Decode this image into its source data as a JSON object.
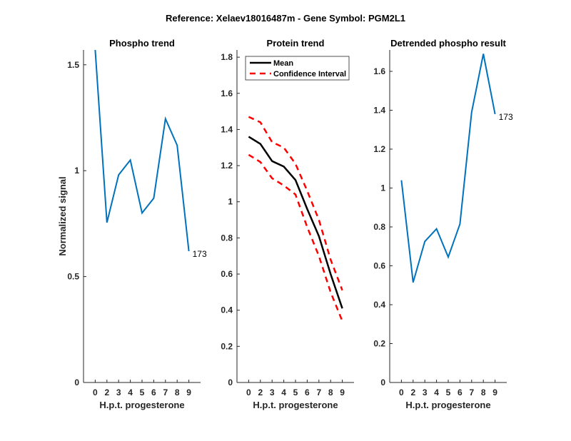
{
  "figure_title": "Reference:  Xelaev18016487m - Gene Symbol:  PGM2L1",
  "colors": {
    "phospho": "#0072BD",
    "mean": "#000000",
    "ci": "#FF0000",
    "axis": "#262626"
  },
  "chart_data": [
    {
      "type": "line",
      "title": "Phospho trend",
      "xlabel": "H.p.t. progesterone",
      "ylabel": "Normalized signal",
      "categories": [
        "0",
        "2",
        "3",
        "4",
        "5",
        "6",
        "7",
        "8",
        "9"
      ],
      "ylim": [
        0,
        1.57
      ],
      "yticks": [
        0,
        0.5,
        1,
        1.5
      ],
      "ytick_labels": [
        "0",
        "0.5",
        "1",
        "1.5"
      ],
      "series": [
        {
          "name": "phospho",
          "values": [
            1.57,
            0.755,
            0.98,
            1.05,
            0.8,
            0.87,
            1.245,
            1.12,
            0.62
          ]
        }
      ],
      "annotation": "173",
      "grid": false
    },
    {
      "type": "line",
      "title": "Protein trend",
      "xlabel": "H.p.t. progesterone",
      "categories": [
        "0",
        "2",
        "3",
        "4",
        "5",
        "6",
        "7",
        "8",
        "9"
      ],
      "ylim": [
        0,
        1.84
      ],
      "yticks": [
        0,
        0.2,
        0.4,
        0.6,
        0.8,
        1,
        1.2,
        1.4,
        1.6,
        1.8
      ],
      "ytick_labels": [
        "0",
        "0.2",
        "0.4",
        "0.6",
        "0.8",
        "1",
        "1.2",
        "1.4",
        "1.6",
        "1.8"
      ],
      "series": [
        {
          "name": "Mean",
          "values": [
            1.36,
            1.32,
            1.225,
            1.195,
            1.12,
            0.96,
            0.81,
            0.6,
            0.41
          ]
        },
        {
          "name": "Confidence Interval",
          "values": [
            1.47,
            1.44,
            1.33,
            1.3,
            1.21,
            1.06,
            0.9,
            0.68,
            0.51
          ]
        },
        {
          "name": "Confidence Interval (lower)",
          "values": [
            1.26,
            1.22,
            1.13,
            1.09,
            1.04,
            0.86,
            0.7,
            0.5,
            0.34
          ]
        }
      ],
      "legend": {
        "placement": "top-right",
        "entries": [
          "Mean",
          "Confidence Interval"
        ]
      },
      "grid": false
    },
    {
      "type": "line",
      "title": "Detrended phospho result",
      "xlabel": "H.p.t. progesterone",
      "categories": [
        "0",
        "2",
        "3",
        "4",
        "5",
        "6",
        "7",
        "8",
        "9"
      ],
      "ylim": [
        0,
        1.71
      ],
      "yticks": [
        0,
        0.2,
        0.4,
        0.6,
        0.8,
        1,
        1.2,
        1.4,
        1.6
      ],
      "ytick_labels": [
        "0",
        "0.2",
        "0.4",
        "0.6",
        "0.8",
        "1",
        "1.2",
        "1.4",
        "1.6"
      ],
      "series": [
        {
          "name": "detrended",
          "values": [
            1.04,
            0.515,
            0.725,
            0.79,
            0.645,
            0.815,
            1.39,
            1.69,
            1.38
          ]
        }
      ],
      "annotation": "173",
      "grid": false
    }
  ]
}
